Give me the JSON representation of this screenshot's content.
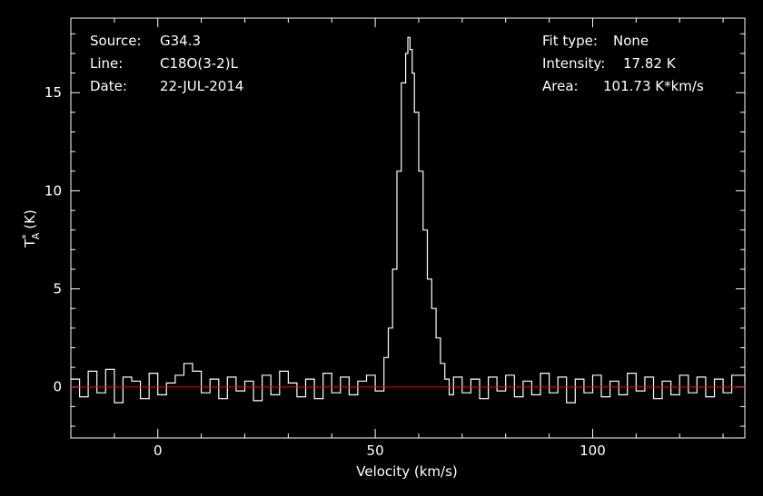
{
  "info": {
    "source_label": "Source:",
    "source_value": "G34.3",
    "line_label": "Line:",
    "line_value": "C18O(3-2)L",
    "date_label": "Date:",
    "date_value": "22-JUL-2014",
    "fit_label": "Fit type:",
    "fit_value": "None",
    "intensity_label": "Intensity:",
    "intensity_value": "17.82 K",
    "area_label": "Area:",
    "area_value": "101.73 K*km/s"
  },
  "chart_data": {
    "type": "line",
    "xlabel": "Velocity (km/s)",
    "ylabel_main": "T",
    "ylabel_sup": "*",
    "ylabel_sub": "A",
    "ylabel_unit": "(K)",
    "xlim": [
      -20,
      135
    ],
    "ylim": [
      -2.6,
      18.8
    ],
    "xticks": [
      0,
      50,
      100
    ],
    "xtick_labels": [
      "0",
      "50",
      "100"
    ],
    "yticks": [
      0,
      5,
      10,
      15
    ],
    "ytick_labels": [
      "0",
      "5",
      "10",
      "15"
    ],
    "grid": false,
    "baseline": {
      "y": 0,
      "color": "#ff0000"
    },
    "colors": {
      "background": "#000000",
      "axes": "#ffffff",
      "spectrum": "#ffffff",
      "baseline": "#ff0000"
    },
    "series": [
      {
        "x": [
          -20,
          -18,
          -16,
          -14,
          -12,
          -10,
          -8,
          -6,
          -4,
          -2,
          0,
          2,
          4,
          6,
          8,
          10,
          12,
          14,
          16,
          18,
          20,
          22,
          24,
          26,
          28,
          30,
          32,
          34,
          36,
          38,
          40,
          42,
          44,
          46,
          48,
          50,
          52,
          53,
          54,
          55,
          56,
          57,
          57.5,
          58,
          58.5,
          59,
          60,
          61,
          62,
          63,
          64,
          65,
          66,
          67,
          68,
          70,
          72,
          74,
          76,
          78,
          80,
          82,
          84,
          86,
          88,
          90,
          92,
          94,
          96,
          98,
          100,
          102,
          104,
          106,
          108,
          110,
          112,
          114,
          116,
          118,
          120,
          122,
          124,
          126,
          128,
          130,
          132,
          135
        ],
        "y": [
          0.4,
          -0.5,
          0.8,
          -0.3,
          0.9,
          -0.8,
          0.5,
          0.3,
          -0.6,
          0.7,
          -0.4,
          0.2,
          0.6,
          1.2,
          0.8,
          -0.3,
          0.4,
          -0.6,
          0.5,
          -0.2,
          0.3,
          -0.7,
          0.6,
          -0.4,
          0.8,
          0.2,
          -0.5,
          0.4,
          -0.6,
          0.7,
          -0.3,
          0.5,
          -0.4,
          0.3,
          0.6,
          -0.2,
          1.5,
          3.0,
          6.0,
          11.0,
          15.5,
          17.0,
          17.82,
          17.2,
          16.0,
          14.0,
          11.0,
          8.0,
          5.5,
          4.0,
          2.5,
          1.2,
          0.4,
          -0.4,
          0.5,
          -0.3,
          0.4,
          -0.6,
          0.5,
          -0.2,
          0.6,
          -0.5,
          0.3,
          -0.4,
          0.7,
          -0.3,
          0.5,
          -0.8,
          0.4,
          -0.3,
          0.6,
          -0.5,
          0.3,
          -0.4,
          0.7,
          -0.2,
          0.5,
          -0.6,
          0.3,
          -0.4,
          0.6,
          -0.3,
          0.5,
          -0.5,
          0.4,
          -0.3,
          0.6,
          0.2
        ]
      }
    ]
  }
}
